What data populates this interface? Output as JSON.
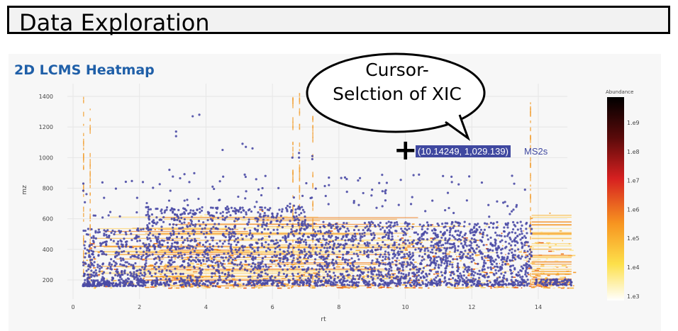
{
  "page": {
    "title": "Data Exploration"
  },
  "plot": {
    "title": "2D LCMS Heatmap"
  },
  "annotation": {
    "line1": "Cursor-",
    "line2": "Selction of XIC"
  },
  "hover": {
    "coords": "(10.14249, 1,029.139)",
    "series": "MS2s"
  },
  "colors": {
    "ms2_marker": "#4a4aa5",
    "plot_title": "#1f5fa8",
    "hover_bg": "#3f48a0"
  },
  "chart_data": {
    "type": "heatmap",
    "title": "2D LCMS Heatmap",
    "xlabel": "rt",
    "ylabel": "mz",
    "xlim": [
      -0.3,
      15.6
    ],
    "ylim": [
      80,
      1480
    ],
    "x_ticks": [
      0,
      2,
      4,
      6,
      8,
      10,
      12,
      14
    ],
    "y_ticks": [
      200,
      400,
      600,
      800,
      1000,
      1200,
      1400
    ],
    "grid": true,
    "colorbar": {
      "title": "Abundance",
      "scale": "log",
      "ticks": [
        "1.e9",
        "1.e8",
        "1.e7",
        "1.e6",
        "1.e5",
        "1.e4",
        "1.e3"
      ]
    },
    "series": [
      {
        "name": "MS2s",
        "marker": "scatter"
      }
    ],
    "hover_point": {
      "x": 10.14249,
      "y": 1029.139
    }
  }
}
